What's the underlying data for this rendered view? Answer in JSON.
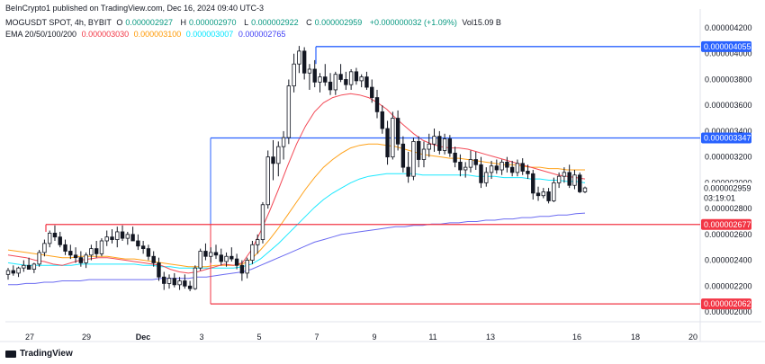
{
  "publisher_line": "BeInCrypto1 published on TradingView.com, Dec 16, 2024 09:40 UTC-3",
  "symbol_line": {
    "symbol": "MOGUSDT SPOT, 4h, BYBIT",
    "ohlc": [
      {
        "k": "O",
        "v": "0.000002927"
      },
      {
        "k": "H",
        "v": "0.000002970"
      },
      {
        "k": "L",
        "v": "0.000002922"
      },
      {
        "k": "C",
        "v": "0.000002959"
      }
    ],
    "change": "+0.000000032 (+1.09%)",
    "vol": "Vol15.09 B"
  },
  "ema_line": {
    "label": "EMA 20/50/100/200",
    "values": [
      {
        "v": "0.000003030",
        "color": "#f23645"
      },
      {
        "v": "0.000003100",
        "color": "#ff9800"
      },
      {
        "v": "0.000003007",
        "color": "#00e5ff"
      },
      {
        "v": "0.000002765",
        "color": "#3d3df5"
      }
    ]
  },
  "footer": {
    "brand": "TradingView"
  },
  "colors": {
    "up": "#131722",
    "down": "#131722",
    "ema20": "#f23645",
    "ema50": "#ff9800",
    "ema100": "#00e5ff",
    "ema200": "#5b5bf0",
    "blue_level": "#2962ff",
    "red_level": "#f23645",
    "current_label": "#ffffff"
  },
  "chart_data": {
    "type": "candlestick",
    "x_tick_labels": [
      "27",
      "29",
      "Dec",
      "3",
      "5",
      "7",
      "9",
      "11",
      "13",
      "16",
      "18",
      "20"
    ],
    "y_tick_labels": [
      "0.000004200",
      "0.000004000",
      "0.000003800",
      "0.000003600",
      "0.000003400",
      "0.000003200",
      "0.000003000",
      "0.000002800",
      "0.000002600",
      "0.000002400",
      "0.000002200",
      "0.000002000"
    ],
    "ylim": [
      1.95e-06,
      4.33e-06
    ],
    "levels": [
      {
        "label": "0.000004055",
        "value": 4.055e-06,
        "color": "#2962ff",
        "x_start": "Dec 7"
      },
      {
        "label": "0.000003347",
        "value": 3.347e-06,
        "color": "#2962ff",
        "x_start": "Dec 3"
      },
      {
        "label": "0.000002677",
        "value": 2.677e-06,
        "color": "#f23645",
        "x_start": "Nov 27"
      },
      {
        "label": "0.000002062",
        "value": 2.062e-06,
        "color": "#f23645",
        "x_start": "Dec 3"
      }
    ],
    "current_price": {
      "label": "0.000002959",
      "countdown": "03:19:01",
      "value": 2.959e-06
    },
    "candles": [
      {
        "o": 2.29,
        "h": 2.34,
        "l": 2.25,
        "c": 2.32
      },
      {
        "o": 2.32,
        "h": 2.36,
        "l": 2.28,
        "c": 2.3
      },
      {
        "o": 2.3,
        "h": 2.35,
        "l": 2.27,
        "c": 2.34
      },
      {
        "o": 2.34,
        "h": 2.4,
        "l": 2.31,
        "c": 2.36
      },
      {
        "o": 2.36,
        "h": 2.42,
        "l": 2.33,
        "c": 2.33
      },
      {
        "o": 2.33,
        "h": 2.38,
        "l": 2.3,
        "c": 2.37
      },
      {
        "o": 2.37,
        "h": 2.48,
        "l": 2.35,
        "c": 2.46
      },
      {
        "o": 2.46,
        "h": 2.56,
        "l": 2.43,
        "c": 2.53
      },
      {
        "o": 2.53,
        "h": 2.63,
        "l": 2.5,
        "c": 2.61
      },
      {
        "o": 2.61,
        "h": 2.67,
        "l": 2.55,
        "c": 2.58
      },
      {
        "o": 2.58,
        "h": 2.62,
        "l": 2.5,
        "c": 2.52
      },
      {
        "o": 2.52,
        "h": 2.56,
        "l": 2.44,
        "c": 2.47
      },
      {
        "o": 2.47,
        "h": 2.52,
        "l": 2.41,
        "c": 2.44
      },
      {
        "o": 2.44,
        "h": 2.5,
        "l": 2.38,
        "c": 2.42
      },
      {
        "o": 2.42,
        "h": 2.47,
        "l": 2.35,
        "c": 2.38
      },
      {
        "o": 2.38,
        "h": 2.46,
        "l": 2.34,
        "c": 2.44
      },
      {
        "o": 2.44,
        "h": 2.52,
        "l": 2.4,
        "c": 2.49
      },
      {
        "o": 2.49,
        "h": 2.55,
        "l": 2.42,
        "c": 2.45
      },
      {
        "o": 2.45,
        "h": 2.57,
        "l": 2.43,
        "c": 2.55
      },
      {
        "o": 2.55,
        "h": 2.63,
        "l": 2.51,
        "c": 2.58
      },
      {
        "o": 2.58,
        "h": 2.64,
        "l": 2.53,
        "c": 2.56
      },
      {
        "o": 2.56,
        "h": 2.66,
        "l": 2.5,
        "c": 2.62
      },
      {
        "o": 2.62,
        "h": 2.67,
        "l": 2.55,
        "c": 2.57
      },
      {
        "o": 2.57,
        "h": 2.62,
        "l": 2.52,
        "c": 2.6
      },
      {
        "o": 2.6,
        "h": 2.66,
        "l": 2.55,
        "c": 2.55
      },
      {
        "o": 2.55,
        "h": 2.6,
        "l": 2.48,
        "c": 2.51
      },
      {
        "o": 2.51,
        "h": 2.55,
        "l": 2.45,
        "c": 2.49
      },
      {
        "o": 2.49,
        "h": 2.52,
        "l": 2.4,
        "c": 2.43
      },
      {
        "o": 2.43,
        "h": 2.47,
        "l": 2.35,
        "c": 2.38
      },
      {
        "o": 2.38,
        "h": 2.42,
        "l": 2.24,
        "c": 2.27
      },
      {
        "o": 2.27,
        "h": 2.31,
        "l": 2.17,
        "c": 2.22
      },
      {
        "o": 2.22,
        "h": 2.29,
        "l": 2.18,
        "c": 2.26
      },
      {
        "o": 2.26,
        "h": 2.3,
        "l": 2.19,
        "c": 2.21
      },
      {
        "o": 2.21,
        "h": 2.27,
        "l": 2.17,
        "c": 2.24
      },
      {
        "o": 2.24,
        "h": 2.29,
        "l": 2.18,
        "c": 2.2
      },
      {
        "o": 2.2,
        "h": 2.24,
        "l": 2.16,
        "c": 2.18
      },
      {
        "o": 2.18,
        "h": 2.36,
        "l": 2.17,
        "c": 2.34
      },
      {
        "o": 2.34,
        "h": 2.49,
        "l": 2.32,
        "c": 2.47
      },
      {
        "o": 2.47,
        "h": 2.53,
        "l": 2.4,
        "c": 2.43
      },
      {
        "o": 2.43,
        "h": 2.5,
        "l": 2.38,
        "c": 2.46
      },
      {
        "o": 2.46,
        "h": 2.52,
        "l": 2.41,
        "c": 2.44
      },
      {
        "o": 2.44,
        "h": 2.49,
        "l": 2.36,
        "c": 2.39
      },
      {
        "o": 2.39,
        "h": 2.46,
        "l": 2.35,
        "c": 2.43
      },
      {
        "o": 2.43,
        "h": 2.5,
        "l": 2.39,
        "c": 2.41
      },
      {
        "o": 2.41,
        "h": 2.45,
        "l": 2.33,
        "c": 2.36
      },
      {
        "o": 2.36,
        "h": 2.4,
        "l": 2.24,
        "c": 2.3
      },
      {
        "o": 2.3,
        "h": 2.42,
        "l": 2.26,
        "c": 2.4
      },
      {
        "o": 2.4,
        "h": 2.55,
        "l": 2.37,
        "c": 2.52
      },
      {
        "o": 2.52,
        "h": 2.6,
        "l": 2.45,
        "c": 2.56
      },
      {
        "o": 2.56,
        "h": 2.85,
        "l": 2.53,
        "c": 2.83
      },
      {
        "o": 2.83,
        "h": 3.25,
        "l": 2.8,
        "c": 3.2
      },
      {
        "o": 3.2,
        "h": 3.33,
        "l": 3.02,
        "c": 3.15
      },
      {
        "o": 3.15,
        "h": 3.32,
        "l": 3.05,
        "c": 3.28
      },
      {
        "o": 3.28,
        "h": 3.4,
        "l": 3.18,
        "c": 3.35
      },
      {
        "o": 3.35,
        "h": 3.8,
        "l": 3.3,
        "c": 3.75
      },
      {
        "o": 3.75,
        "h": 4.0,
        "l": 3.7,
        "c": 3.92
      },
      {
        "o": 3.92,
        "h": 4.06,
        "l": 3.85,
        "c": 4.02
      },
      {
        "o": 4.02,
        "h": 4.05,
        "l": 3.8,
        "c": 3.85
      },
      {
        "o": 3.85,
        "h": 3.92,
        "l": 3.72,
        "c": 3.88
      },
      {
        "o": 3.88,
        "h": 3.95,
        "l": 3.74,
        "c": 3.78
      },
      {
        "o": 3.78,
        "h": 3.85,
        "l": 3.7,
        "c": 3.82
      },
      {
        "o": 3.82,
        "h": 3.92,
        "l": 3.75,
        "c": 3.78
      },
      {
        "o": 3.78,
        "h": 3.85,
        "l": 3.68,
        "c": 3.72
      },
      {
        "o": 3.72,
        "h": 3.86,
        "l": 3.68,
        "c": 3.84
      },
      {
        "o": 3.84,
        "h": 3.92,
        "l": 3.78,
        "c": 3.8
      },
      {
        "o": 3.8,
        "h": 3.86,
        "l": 3.72,
        "c": 3.76
      },
      {
        "o": 3.76,
        "h": 3.88,
        "l": 3.72,
        "c": 3.86
      },
      {
        "o": 3.86,
        "h": 3.89,
        "l": 3.76,
        "c": 3.79
      },
      {
        "o": 3.79,
        "h": 3.84,
        "l": 3.74,
        "c": 3.82
      },
      {
        "o": 3.82,
        "h": 3.86,
        "l": 3.72,
        "c": 3.74
      },
      {
        "o": 3.74,
        "h": 3.8,
        "l": 3.62,
        "c": 3.66
      },
      {
        "o": 3.66,
        "h": 3.72,
        "l": 3.5,
        "c": 3.55
      },
      {
        "o": 3.55,
        "h": 3.6,
        "l": 3.38,
        "c": 3.42
      },
      {
        "o": 3.42,
        "h": 3.48,
        "l": 3.14,
        "c": 3.2
      },
      {
        "o": 3.2,
        "h": 3.55,
        "l": 3.18,
        "c": 3.5
      },
      {
        "o": 3.5,
        "h": 3.56,
        "l": 3.25,
        "c": 3.3
      },
      {
        "o": 3.3,
        "h": 3.36,
        "l": 3.08,
        "c": 3.12
      },
      {
        "o": 3.12,
        "h": 3.24,
        "l": 3.0,
        "c": 3.05
      },
      {
        "o": 3.05,
        "h": 3.35,
        "l": 3.02,
        "c": 3.32
      },
      {
        "o": 3.32,
        "h": 3.36,
        "l": 3.12,
        "c": 3.18
      },
      {
        "o": 3.18,
        "h": 3.32,
        "l": 3.12,
        "c": 3.26
      },
      {
        "o": 3.26,
        "h": 3.38,
        "l": 3.2,
        "c": 3.3
      },
      {
        "o": 3.3,
        "h": 3.42,
        "l": 3.24,
        "c": 3.36
      },
      {
        "o": 3.36,
        "h": 3.4,
        "l": 3.22,
        "c": 3.25
      },
      {
        "o": 3.25,
        "h": 3.38,
        "l": 3.22,
        "c": 3.34
      },
      {
        "o": 3.34,
        "h": 3.37,
        "l": 3.2,
        "c": 3.23
      },
      {
        "o": 3.23,
        "h": 3.28,
        "l": 3.12,
        "c": 3.16
      },
      {
        "o": 3.16,
        "h": 3.22,
        "l": 3.05,
        "c": 3.1
      },
      {
        "o": 3.1,
        "h": 3.16,
        "l": 3.04,
        "c": 3.12
      },
      {
        "o": 3.12,
        "h": 3.25,
        "l": 3.08,
        "c": 3.18
      },
      {
        "o": 3.18,
        "h": 3.24,
        "l": 3.1,
        "c": 3.14
      },
      {
        "o": 3.14,
        "h": 3.2,
        "l": 2.96,
        "c": 3.0
      },
      {
        "o": 3.0,
        "h": 3.12,
        "l": 2.97,
        "c": 3.08
      },
      {
        "o": 3.08,
        "h": 3.17,
        "l": 3.03,
        "c": 3.13
      },
      {
        "o": 3.13,
        "h": 3.18,
        "l": 3.07,
        "c": 3.1
      },
      {
        "o": 3.1,
        "h": 3.18,
        "l": 3.06,
        "c": 3.16
      },
      {
        "o": 3.16,
        "h": 3.2,
        "l": 3.08,
        "c": 3.12
      },
      {
        "o": 3.12,
        "h": 3.17,
        "l": 3.05,
        "c": 3.08
      },
      {
        "o": 3.08,
        "h": 3.18,
        "l": 3.05,
        "c": 3.15
      },
      {
        "o": 3.15,
        "h": 3.19,
        "l": 3.06,
        "c": 3.09
      },
      {
        "o": 3.09,
        "h": 3.14,
        "l": 3.03,
        "c": 3.07
      },
      {
        "o": 3.07,
        "h": 3.1,
        "l": 2.87,
        "c": 2.92
      },
      {
        "o": 2.92,
        "h": 2.97,
        "l": 2.86,
        "c": 2.9
      },
      {
        "o": 2.9,
        "h": 2.96,
        "l": 2.88,
        "c": 2.93
      },
      {
        "o": 2.93,
        "h": 2.96,
        "l": 2.84,
        "c": 2.86
      },
      {
        "o": 2.86,
        "h": 3.04,
        "l": 2.85,
        "c": 3.0
      },
      {
        "o": 3.0,
        "h": 3.08,
        "l": 2.96,
        "c": 3.05
      },
      {
        "o": 3.05,
        "h": 3.12,
        "l": 3.0,
        "c": 3.08
      },
      {
        "o": 3.08,
        "h": 3.14,
        "l": 2.96,
        "c": 2.98
      },
      {
        "o": 2.98,
        "h": 3.1,
        "l": 2.95,
        "c": 3.06
      },
      {
        "o": 3.06,
        "h": 3.08,
        "l": 2.92,
        "c": 2.93
      },
      {
        "o": 2.93,
        "h": 2.97,
        "l": 2.92,
        "c": 2.96
      }
    ],
    "ema20": [
      2.44,
      2.43,
      2.42,
      2.4,
      2.39,
      2.37,
      2.36,
      2.38,
      2.4,
      2.41,
      2.42,
      2.42,
      2.41,
      2.4,
      2.39,
      2.38,
      2.37,
      2.36,
      2.33,
      2.31,
      2.3,
      2.31,
      2.33,
      2.35,
      2.37,
      2.36,
      2.38,
      2.48,
      2.62,
      2.78,
      2.95,
      3.13,
      3.3,
      3.44,
      3.55,
      3.62,
      3.66,
      3.68,
      3.69,
      3.68,
      3.66,
      3.62,
      3.57,
      3.5,
      3.44,
      3.38,
      3.33,
      3.3,
      3.28,
      3.27,
      3.27,
      3.26,
      3.24,
      3.22,
      3.2,
      3.18,
      3.16,
      3.14,
      3.12,
      3.1,
      3.08,
      3.06,
      3.05,
      3.04,
      3.03
    ],
    "ema50": [
      2.48,
      2.47,
      2.46,
      2.45,
      2.44,
      2.43,
      2.42,
      2.42,
      2.43,
      2.43,
      2.43,
      2.43,
      2.42,
      2.41,
      2.41,
      2.4,
      2.39,
      2.38,
      2.37,
      2.36,
      2.35,
      2.35,
      2.35,
      2.36,
      2.36,
      2.36,
      2.37,
      2.41,
      2.48,
      2.56,
      2.65,
      2.75,
      2.85,
      2.95,
      3.04,
      3.12,
      3.18,
      3.23,
      3.27,
      3.29,
      3.3,
      3.3,
      3.29,
      3.28,
      3.26,
      3.24,
      3.22,
      3.21,
      3.2,
      3.19,
      3.19,
      3.18,
      3.17,
      3.16,
      3.15,
      3.14,
      3.14,
      3.13,
      3.12,
      3.12,
      3.11,
      3.11,
      3.1,
      3.1,
      3.1
    ],
    "ema100": [
      2.38,
      2.37,
      2.36,
      2.36,
      2.36,
      2.36,
      2.36,
      2.36,
      2.37,
      2.37,
      2.37,
      2.37,
      2.37,
      2.37,
      2.37,
      2.36,
      2.36,
      2.35,
      2.35,
      2.34,
      2.34,
      2.34,
      2.34,
      2.34,
      2.34,
      2.34,
      2.35,
      2.37,
      2.41,
      2.47,
      2.53,
      2.6,
      2.67,
      2.74,
      2.81,
      2.87,
      2.92,
      2.96,
      3.0,
      3.03,
      3.05,
      3.06,
      3.07,
      3.07,
      3.07,
      3.07,
      3.06,
      3.06,
      3.06,
      3.06,
      3.06,
      3.06,
      3.05,
      3.05,
      3.05,
      3.04,
      3.04,
      3.04,
      3.03,
      3.03,
      3.02,
      3.02,
      3.01,
      3.01,
      3.0
    ],
    "ema200": [
      2.21,
      2.21,
      2.22,
      2.22,
      2.23,
      2.23,
      2.24,
      2.24,
      2.24,
      2.25,
      2.25,
      2.25,
      2.25,
      2.25,
      2.25,
      2.25,
      2.25,
      2.26,
      2.26,
      2.26,
      2.26,
      2.27,
      2.27,
      2.28,
      2.29,
      2.3,
      2.31,
      2.33,
      2.36,
      2.39,
      2.42,
      2.45,
      2.48,
      2.51,
      2.54,
      2.56,
      2.58,
      2.6,
      2.61,
      2.62,
      2.63,
      2.64,
      2.65,
      2.66,
      2.66,
      2.67,
      2.67,
      2.68,
      2.68,
      2.69,
      2.69,
      2.7,
      2.7,
      2.71,
      2.71,
      2.72,
      2.72,
      2.73,
      2.73,
      2.74,
      2.74,
      2.75,
      2.75,
      2.76,
      2.765
    ]
  }
}
